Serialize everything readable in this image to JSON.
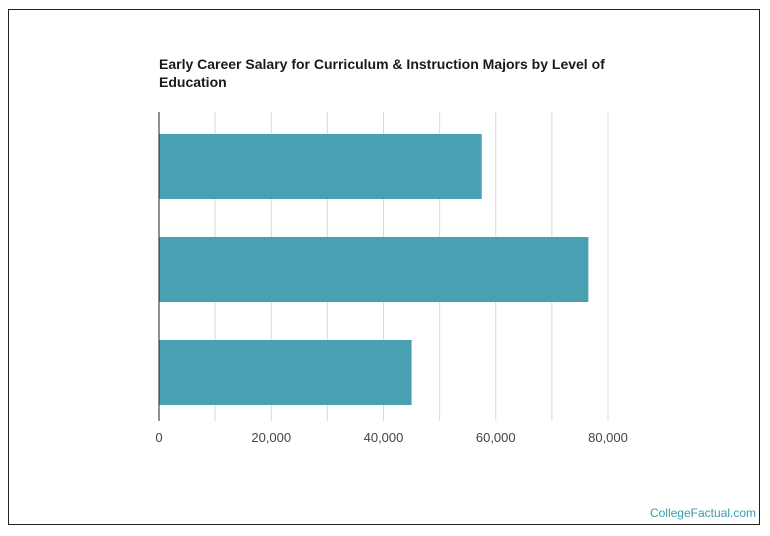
{
  "chart_data": {
    "type": "bar",
    "orientation": "horizontal",
    "title": "Early Career Salary for Curriculum & Instruction Majors by Level of Education",
    "categories": [
      "",
      "",
      ""
    ],
    "values": [
      57500,
      76500,
      45000
    ],
    "xlabel": "",
    "ylabel": "",
    "xlim": [
      0,
      80000
    ],
    "x_ticks": [
      0,
      20000,
      40000,
      60000,
      80000
    ],
    "x_tick_labels": [
      "0",
      "20,000",
      "40,000",
      "60,000",
      "80,000"
    ],
    "grid": true,
    "bar_color": "#4aa0b3",
    "grid_color": "#d9d9d9"
  },
  "watermark": "CollegeFactual.com"
}
